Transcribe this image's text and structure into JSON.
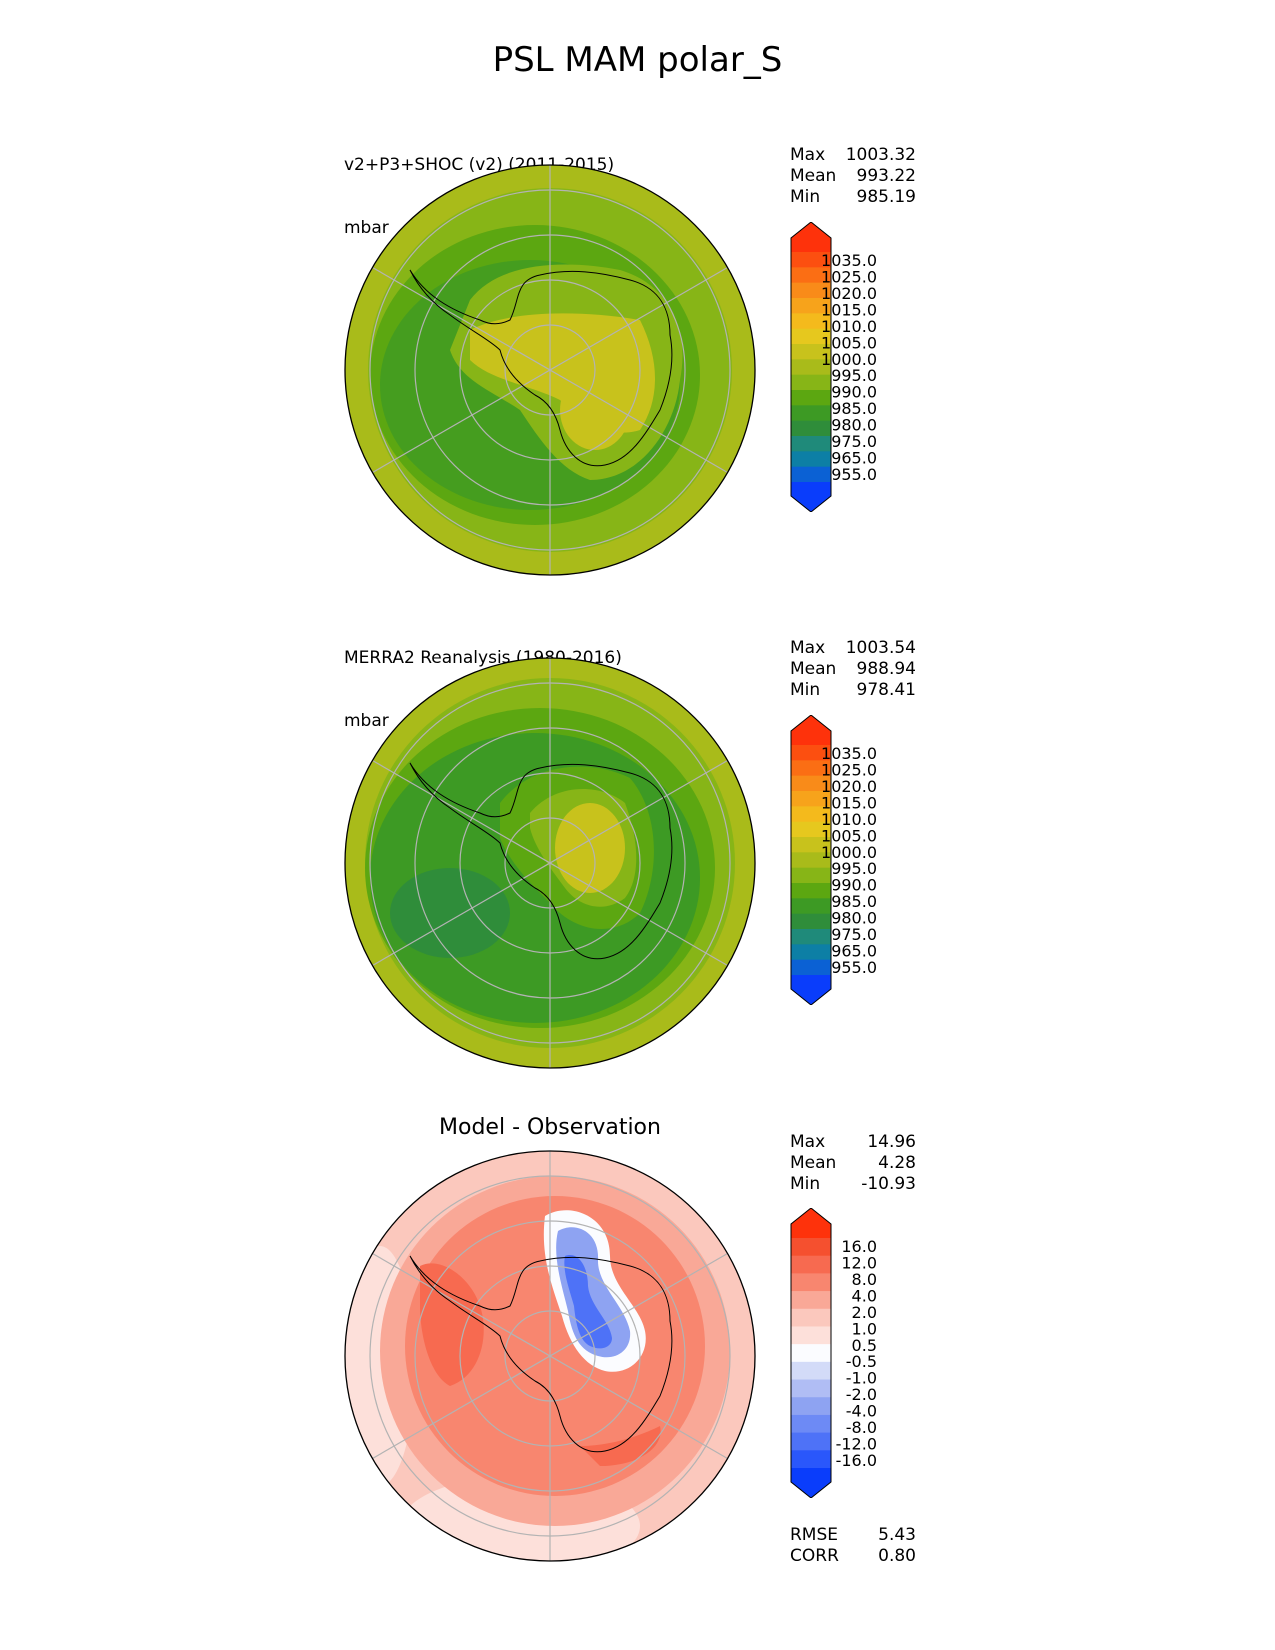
{
  "figure_title": "PSL MAM polar_S",
  "colors": {
    "abs_levels": [
      "#0a3dfb",
      "#0b61d4",
      "#0d7fa5",
      "#1f8a7a",
      "#2f8d3a",
      "#3d9a24",
      "#5ca711",
      "#87b517",
      "#a9bb1a",
      "#c8c21c",
      "#e6c81e",
      "#f4ba1c",
      "#f7a31b",
      "#f98b19",
      "#fb6e14",
      "#fc4f10",
      "#fe320b"
    ],
    "diff_levels": [
      "#0a3dfb",
      "#2a57fb",
      "#4e72f7",
      "#6d8af5",
      "#8ea3f2",
      "#b0bdf4",
      "#d3dbf8",
      "#fbfcff",
      "#fde0da",
      "#fbc8bd",
      "#f9a897",
      "#f8866f",
      "#f76a50",
      "#f5502f",
      "#fe320b"
    ]
  },
  "chart_data": [
    {
      "type": "heatmap",
      "projection": "south polar stereographic",
      "title": "v2+P3+SHOC (v2) (2011-2015)",
      "units": "mbar",
      "stats": [
        {
          "label": "Max",
          "value": "1003.32"
        },
        {
          "label": "Mean",
          "value": "993.22"
        },
        {
          "label": "Min",
          "value": "985.19"
        }
      ],
      "colorbar_ticks": [
        "1035.0",
        "1025.0",
        "1020.0",
        "1015.0",
        "1010.0",
        "1005.0",
        "1000.0",
        "995.0",
        "990.0",
        "985.0",
        "980.0",
        "975.0",
        "965.0",
        "955.0"
      ],
      "colorbar_extend": "both"
    },
    {
      "type": "heatmap",
      "projection": "south polar stereographic",
      "title": "MERRA2 Reanalysis (1980-2016)",
      "units": "mbar",
      "stats": [
        {
          "label": "Max",
          "value": "1003.54"
        },
        {
          "label": "Mean",
          "value": "988.94"
        },
        {
          "label": "Min",
          "value": "978.41"
        }
      ],
      "colorbar_ticks": [
        "1035.0",
        "1025.0",
        "1020.0",
        "1015.0",
        "1010.0",
        "1005.0",
        "1000.0",
        "995.0",
        "990.0",
        "985.0",
        "980.0",
        "975.0",
        "965.0",
        "955.0"
      ],
      "colorbar_extend": "both"
    },
    {
      "type": "heatmap",
      "projection": "south polar stereographic",
      "title": "Model - Observation",
      "stats": [
        {
          "label": "Max",
          "value": "14.96"
        },
        {
          "label": "Mean",
          "value": "4.28"
        },
        {
          "label": "Min",
          "value": "-10.93"
        }
      ],
      "extra_stats": [
        {
          "label": "RMSE",
          "value": "5.43"
        },
        {
          "label": "CORR",
          "value": "0.80"
        }
      ],
      "colorbar_ticks": [
        "16.0",
        "12.0",
        "8.0",
        "4.0",
        "2.0",
        "1.0",
        "0.5",
        "-0.5",
        "-1.0",
        "-2.0",
        "-4.0",
        "-8.0",
        "-12.0",
        "-16.0"
      ],
      "colorbar_extend": "both"
    }
  ]
}
